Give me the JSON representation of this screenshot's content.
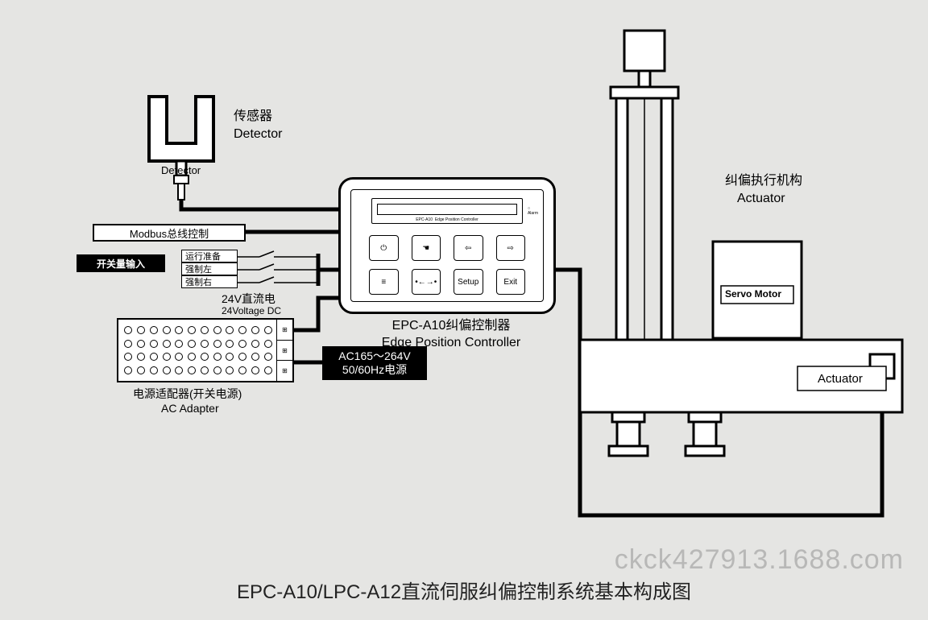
{
  "detector": {
    "label_en": "Detector",
    "side_label_cn": "传感器",
    "side_label_en": "Detector"
  },
  "modbus": {
    "label": "Modbus总线控制"
  },
  "switch_input": {
    "label": "开关量输入"
  },
  "switches": {
    "s1": "运行准备",
    "s2": "强制左",
    "s3": "强制右"
  },
  "dc24": {
    "cn": "24V直流电",
    "en": "24Voltage DC"
  },
  "controller": {
    "model": "EPC-A10",
    "disp": "Edge Position Controller",
    "alarm": "Alarm",
    "btn_setup": "Setup",
    "btn_exit": "Exit",
    "label_cn": "EPC-A10纠偏控制器",
    "label_en": "Edge Position Controller"
  },
  "ac": {
    "line1": "AC165～264V",
    "line2": "50/60Hz电源"
  },
  "adapter": {
    "cn": "电源适配器(开关电源)",
    "en": "AC Adapter"
  },
  "actuator": {
    "top_cn": "纠偏执行机构",
    "top_en": "Actuator",
    "servo": "Servo Motor",
    "body": "Actuator"
  },
  "title": "EPC-A10/LPC-A12直流伺服纠偏控制系统基本构成图",
  "watermark": "ckck427913.1688.com",
  "colors": {
    "line": "#000000",
    "bg": "#e5e5e3"
  }
}
